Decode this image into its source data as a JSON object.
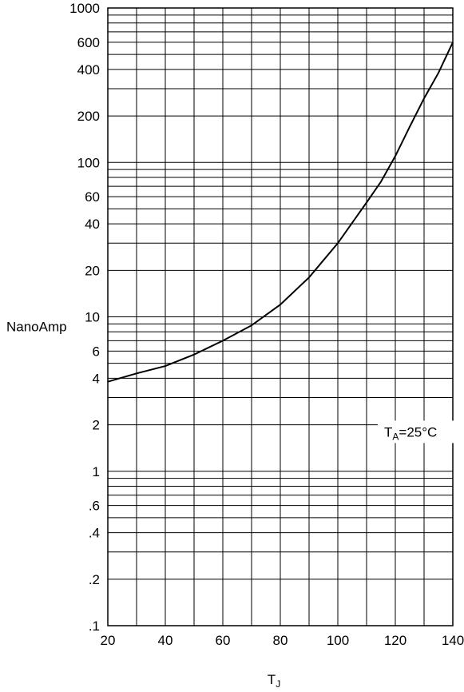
{
  "chart_data": {
    "type": "line",
    "title": "",
    "xlabel": "T",
    "xlabel_sub": "J",
    "ylabel": "NanoAmp",
    "xlim": [
      20,
      140
    ],
    "ylim": [
      0.1,
      1000
    ],
    "y_scale": "log",
    "grid": true,
    "x_ticks": [
      {
        "value": 20,
        "label": "20"
      },
      {
        "value": 40,
        "label": "40"
      },
      {
        "value": 60,
        "label": "60"
      },
      {
        "value": 80,
        "label": "80"
      },
      {
        "value": 100,
        "label": "100"
      },
      {
        "value": 120,
        "label": "120"
      },
      {
        "value": 140,
        "label": "140"
      }
    ],
    "y_ticks": [
      {
        "value": 0.1,
        "label": ".1"
      },
      {
        "value": 0.2,
        "label": ".2"
      },
      {
        "value": 0.4,
        "label": ".4"
      },
      {
        "value": 0.6,
        "label": ".6"
      },
      {
        "value": 1,
        "label": "1"
      },
      {
        "value": 2,
        "label": "2"
      },
      {
        "value": 4,
        "label": "4"
      },
      {
        "value": 6,
        "label": "6"
      },
      {
        "value": 10,
        "label": "10"
      },
      {
        "value": 20,
        "label": "20"
      },
      {
        "value": 40,
        "label": "40"
      },
      {
        "value": 60,
        "label": "60"
      },
      {
        "value": 100,
        "label": "100"
      },
      {
        "value": 200,
        "label": "200"
      },
      {
        "value": 400,
        "label": "400"
      },
      {
        "value": 600,
        "label": "600"
      },
      {
        "value": 1000,
        "label": "1000"
      }
    ],
    "series": [
      {
        "x": [
          20,
          30,
          40,
          50,
          60,
          70,
          80,
          90,
          100,
          110,
          115,
          120,
          125,
          130,
          135,
          140
        ],
        "y": [
          3.8,
          4.3,
          4.8,
          5.7,
          7.0,
          8.8,
          12,
          18,
          30,
          55,
          75,
          110,
          170,
          260,
          380,
          600
        ]
      }
    ],
    "annotations": [
      {
        "text_main": "T",
        "text_sub": "A",
        "text_rest": "=25°C",
        "x": 130,
        "y": 1.8
      }
    ]
  }
}
